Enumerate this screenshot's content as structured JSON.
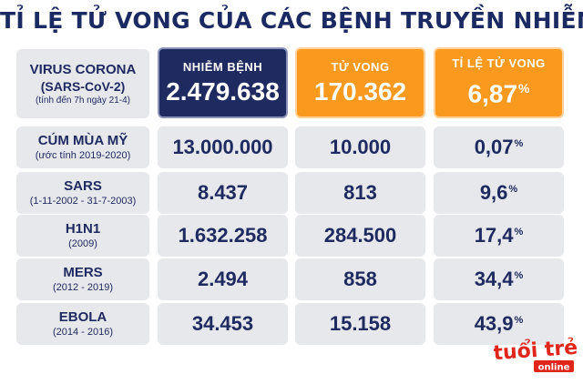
{
  "title": "TỈ LỆ TỬ VONG CỦA CÁC BỆNH TRUYỀN NHIỄM",
  "header": {
    "disease_name": "VIRUS CORONA",
    "disease_alt": "(SARS-CoV-2)",
    "note": "(tính đến 7h ngày 21-4)",
    "col_cases": "NHIỄM BỆNH",
    "col_deaths": "TỬ VONG",
    "col_rate": "TỈ LỆ TỬ VONG",
    "cases": "2.479.638",
    "deaths": "170.362",
    "rate": "6,87",
    "rate_unit": "%"
  },
  "rows": [
    {
      "name": "CÚM MÙA MỸ",
      "period": "(ước tính 2019-2020)",
      "cases": "13.000.000",
      "deaths": "10.000",
      "rate": "0,07",
      "unit": "%"
    },
    {
      "name": "SARS",
      "period": "(1-11-2002 - 31-7-2003)",
      "cases": "8.437",
      "deaths": "813",
      "rate": "9,6",
      "unit": "%"
    },
    {
      "name": "H1N1",
      "period": "(2009)",
      "cases": "1.632.258",
      "deaths": "284.500",
      "rate": "17,4",
      "unit": "%"
    },
    {
      "name": "MERS",
      "period": "(2012 - 2019)",
      "cases": "2.494",
      "deaths": "858",
      "rate": "34,4",
      "unit": "%"
    },
    {
      "name": "EBOLA",
      "period": "(2014 - 2016)",
      "cases": "34.453",
      "deaths": "15.158",
      "rate": "43,9",
      "unit": "%"
    }
  ],
  "logo": {
    "line1": "tuổi trẻ",
    "line2": "online"
  },
  "colors": {
    "navy": "#1f2a60",
    "orange": "#f99a1f",
    "grey": "#e7e8ec",
    "logo_red": "#e0251b"
  },
  "chart_data": {
    "type": "table",
    "title": "TỈ LỆ TỬ VONG CỦA CÁC BỆNH TRUYỀN NHIỄM",
    "columns": [
      "NHIỄM BỆNH",
      "TỬ VONG",
      "TỈ LỆ TỬ VONG"
    ],
    "categories": [
      "VIRUS CORONA",
      "CÚM MÙA MỸ",
      "SARS",
      "H1N1",
      "MERS",
      "EBOLA"
    ],
    "series": [
      {
        "name": "NHIỄM BỆNH",
        "values": [
          2479638,
          13000000,
          8437,
          1632258,
          2494,
          34453
        ]
      },
      {
        "name": "TỬ VONG",
        "values": [
          170362,
          10000,
          813,
          284500,
          858,
          15158
        ]
      },
      {
        "name": "TỈ LỆ TỬ VONG",
        "values": [
          6.87,
          0.07,
          9.6,
          17.4,
          34.4,
          43.9
        ]
      }
    ]
  }
}
